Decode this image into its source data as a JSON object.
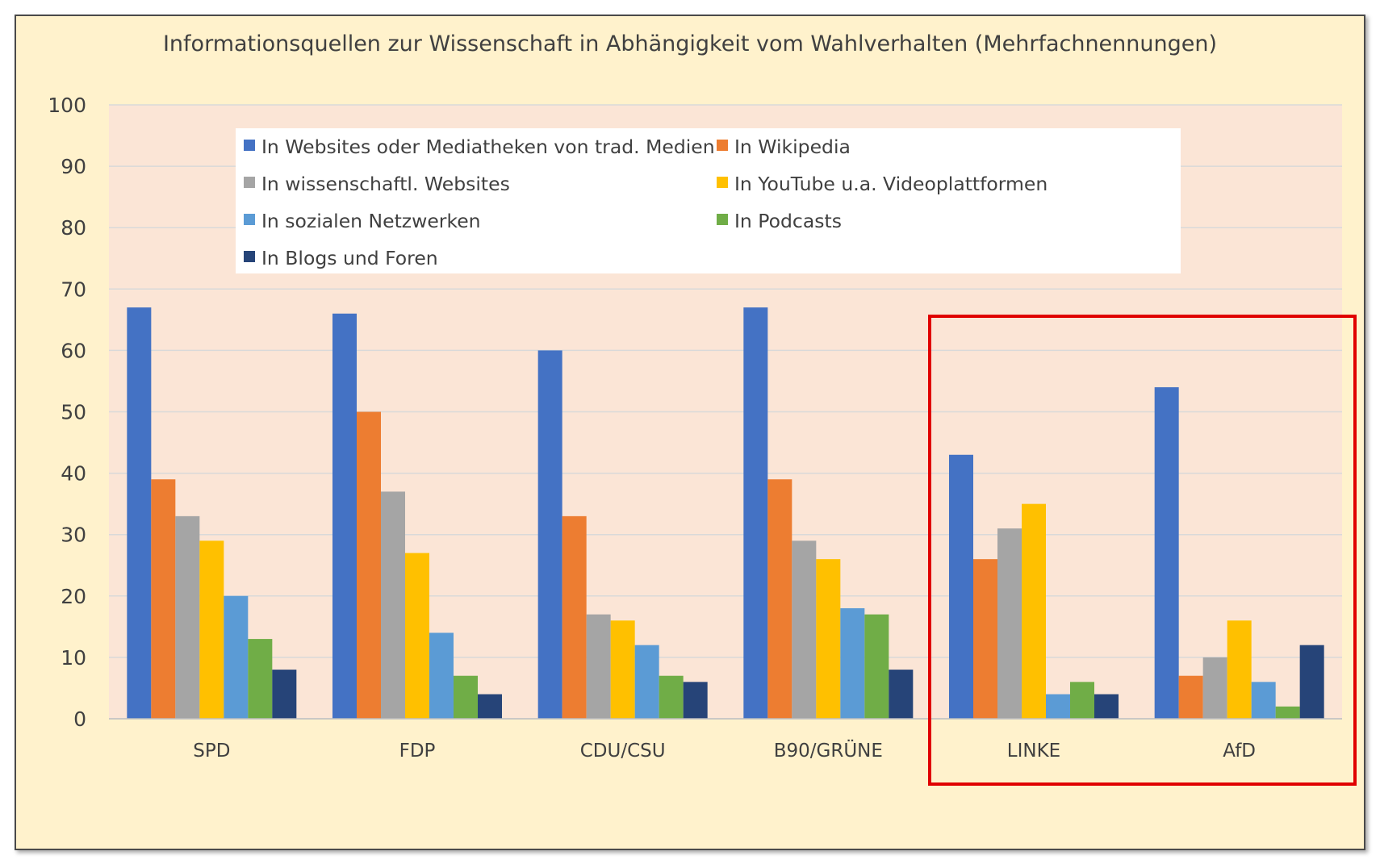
{
  "chart_data": {
    "type": "bar",
    "title": "Informationsquellen zur Wissenschaft in Abhängigkeit vom Wahlverhalten (Mehrfachnennungen)",
    "xlabel": "",
    "ylabel": "",
    "ylim": [
      0,
      100
    ],
    "yticks": [
      0,
      10,
      20,
      30,
      40,
      50,
      60,
      70,
      80,
      90,
      100
    ],
    "grid": true,
    "legend_position": "top",
    "categories": [
      "SPD",
      "FDP",
      "CDU/CSU",
      "B90/GRÜNE",
      "LINKE",
      "AfD"
    ],
    "series": [
      {
        "name": "In Websites oder Mediatheken von trad. Medien",
        "color": "#4472c4",
        "values": [
          67,
          66,
          60,
          67,
          43,
          54
        ]
      },
      {
        "name": "In Wikipedia",
        "color": "#ed7d31",
        "values": [
          39,
          50,
          33,
          39,
          26,
          7
        ]
      },
      {
        "name": "In wissenschaftl. Websites",
        "color": "#a5a5a5",
        "values": [
          33,
          37,
          17,
          29,
          31,
          10
        ]
      },
      {
        "name": "In YouTube u.a. Videoplattformen",
        "color": "#ffc000",
        "values": [
          29,
          27,
          16,
          26,
          35,
          16
        ]
      },
      {
        "name": "In sozialen Netzwerken",
        "color": "#5b9bd5",
        "values": [
          20,
          14,
          12,
          18,
          4,
          6
        ]
      },
      {
        "name": "In Podcasts",
        "color": "#70ad47",
        "values": [
          13,
          7,
          7,
          17,
          6,
          2
        ]
      },
      {
        "name": "In Blogs und Foren",
        "color": "#264478",
        "values": [
          8,
          4,
          6,
          8,
          4,
          12
        ]
      }
    ],
    "highlight": {
      "categories": [
        "LINKE",
        "AfD"
      ],
      "color": "#e00000"
    },
    "colors": {
      "frame_bg": "#fff2cc",
      "plot_bg": "#fbe5d6",
      "gridline": "#d9d9d9",
      "text": "#404040"
    }
  }
}
